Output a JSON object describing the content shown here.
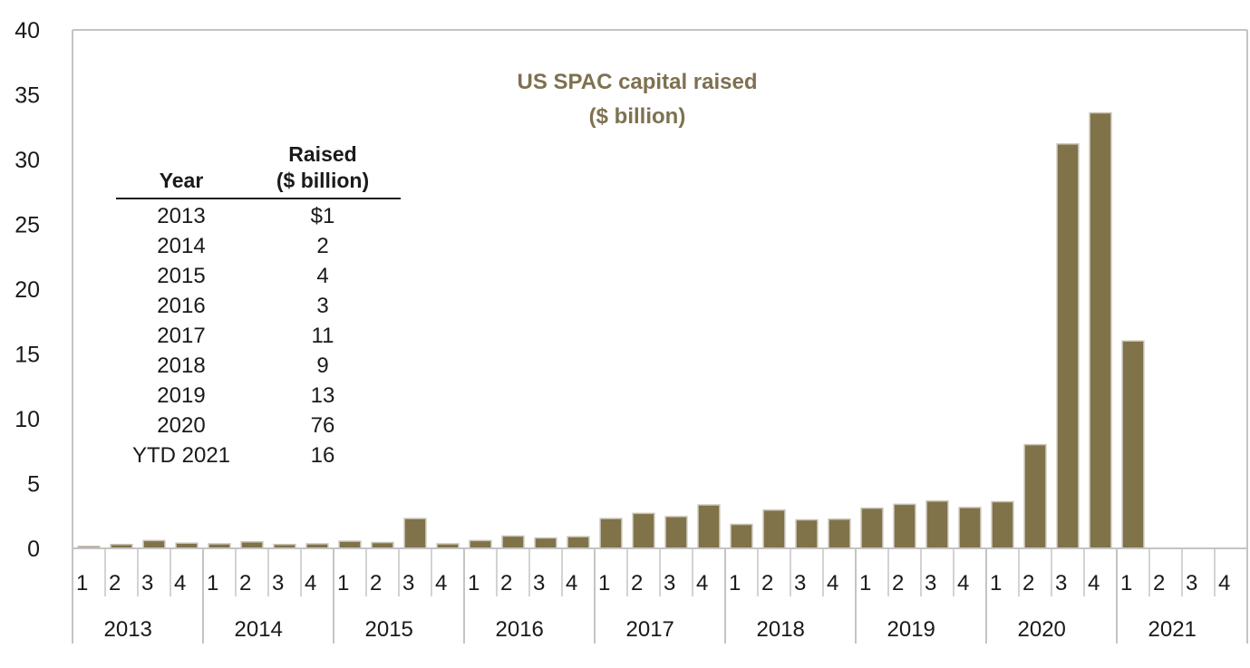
{
  "chart_data": {
    "type": "bar",
    "title": "US SPAC capital raised",
    "subtitle": "($ billion)",
    "xlabel": "",
    "ylabel": "",
    "ylim": [
      0,
      40
    ],
    "yticks": [
      0,
      5,
      10,
      15,
      20,
      25,
      30,
      35,
      40
    ],
    "grid": false,
    "legend": "none",
    "bar_color": "#807249",
    "bar_edge_color": "#c8c3b6",
    "axis_color": "#c4c4c4",
    "years": [
      "2013",
      "2014",
      "2015",
      "2016",
      "2017",
      "2018",
      "2019",
      "2020",
      "2021"
    ],
    "quarters": [
      "1",
      "2",
      "3",
      "4"
    ],
    "categories": [
      "2013 Q1",
      "2013 Q2",
      "2013 Q3",
      "2013 Q4",
      "2014 Q1",
      "2014 Q2",
      "2014 Q3",
      "2014 Q4",
      "2015 Q1",
      "2015 Q2",
      "2015 Q3",
      "2015 Q4",
      "2016 Q1",
      "2016 Q2",
      "2016 Q3",
      "2016 Q4",
      "2017 Q1",
      "2017 Q2",
      "2017 Q3",
      "2017 Q4",
      "2018 Q1",
      "2018 Q2",
      "2018 Q3",
      "2018 Q4",
      "2019 Q1",
      "2019 Q2",
      "2019 Q3",
      "2019 Q4",
      "2020 Q1",
      "2020 Q2",
      "2020 Q3",
      "2020 Q4",
      "2021 Q1",
      "2021 Q2",
      "2021 Q3",
      "2021 Q4"
    ],
    "values": [
      0.15,
      0.3,
      0.6,
      0.4,
      0.35,
      0.5,
      0.3,
      0.35,
      0.55,
      0.45,
      2.3,
      0.35,
      0.6,
      0.95,
      0.8,
      0.9,
      2.3,
      2.7,
      2.45,
      3.35,
      1.85,
      2.95,
      2.2,
      2.25,
      3.1,
      3.4,
      3.65,
      3.15,
      3.6,
      8.0,
      31.2,
      33.6,
      16.0,
      0,
      0,
      0
    ],
    "annotation_table": {
      "headers": {
        "year": "Year",
        "raised_line1": "Raised",
        "raised_line2": "($ billion)"
      },
      "rows": [
        {
          "year": "2013",
          "raised": "$1"
        },
        {
          "year": "2014",
          "raised": "2"
        },
        {
          "year": "2015",
          "raised": "4"
        },
        {
          "year": "2016",
          "raised": "3"
        },
        {
          "year": "2017",
          "raised": "11"
        },
        {
          "year": "2018",
          "raised": "9"
        },
        {
          "year": "2019",
          "raised": "13"
        },
        {
          "year": "2020",
          "raised": "76"
        },
        {
          "year": "YTD 2021",
          "raised": "16"
        }
      ]
    }
  }
}
